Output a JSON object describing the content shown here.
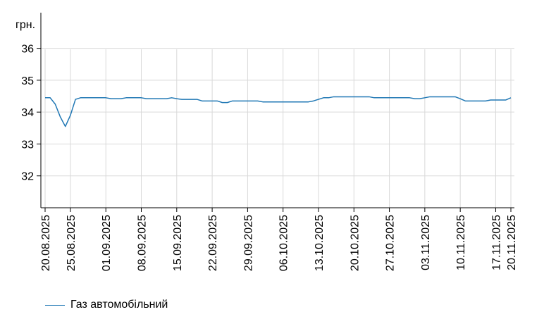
{
  "chart_data": {
    "type": "line",
    "unit_label": "грн.",
    "ylim": [
      31,
      36.5
    ],
    "y_ticks": [
      32,
      33,
      34,
      35,
      36
    ],
    "x_tick_labels": [
      "20.08.2025",
      "25.08.2025",
      "01.09.2025",
      "08.09.2025",
      "15.09.2025",
      "22.09.2025",
      "29.09.2025",
      "06.10.2025",
      "13.10.2025",
      "20.10.2025",
      "27.10.2025",
      "03.11.2025",
      "10.11.2025",
      "17.11.2025",
      "20.11.2025"
    ],
    "grid": true,
    "legend_position": "bottom-left",
    "colors": {
      "series": "#1f77b4",
      "grid": "#d9d9d9",
      "axis": "#000000"
    },
    "series": [
      {
        "name": "Газ автомобільний",
        "points": [
          [
            "20.08.2025",
            34.45
          ],
          [
            "21.08.2025",
            34.45
          ],
          [
            "22.08.2025",
            34.25
          ],
          [
            "23.08.2025",
            33.85
          ],
          [
            "24.08.2025",
            33.55
          ],
          [
            "25.08.2025",
            33.9
          ],
          [
            "26.08.2025",
            34.4
          ],
          [
            "27.08.2025",
            34.45
          ],
          [
            "28.08.2025",
            34.45
          ],
          [
            "29.08.2025",
            34.45
          ],
          [
            "30.08.2025",
            34.45
          ],
          [
            "31.08.2025",
            34.45
          ],
          [
            "01.09.2025",
            34.45
          ],
          [
            "02.09.2025",
            34.42
          ],
          [
            "03.09.2025",
            34.42
          ],
          [
            "04.09.2025",
            34.42
          ],
          [
            "05.09.2025",
            34.45
          ],
          [
            "06.09.2025",
            34.45
          ],
          [
            "07.09.2025",
            34.45
          ],
          [
            "08.09.2025",
            34.45
          ],
          [
            "09.09.2025",
            34.42
          ],
          [
            "10.09.2025",
            34.42
          ],
          [
            "11.09.2025",
            34.42
          ],
          [
            "12.09.2025",
            34.42
          ],
          [
            "13.09.2025",
            34.42
          ],
          [
            "14.09.2025",
            34.45
          ],
          [
            "15.09.2025",
            34.42
          ],
          [
            "16.09.2025",
            34.4
          ],
          [
            "17.09.2025",
            34.4
          ],
          [
            "18.09.2025",
            34.4
          ],
          [
            "19.09.2025",
            34.4
          ],
          [
            "20.09.2025",
            34.35
          ],
          [
            "21.09.2025",
            34.35
          ],
          [
            "22.09.2025",
            34.35
          ],
          [
            "23.09.2025",
            34.35
          ],
          [
            "24.09.2025",
            34.3
          ],
          [
            "25.09.2025",
            34.3
          ],
          [
            "26.09.2025",
            34.35
          ],
          [
            "27.09.2025",
            34.35
          ],
          [
            "28.09.2025",
            34.35
          ],
          [
            "29.09.2025",
            34.35
          ],
          [
            "30.09.2025",
            34.35
          ],
          [
            "01.10.2025",
            34.35
          ],
          [
            "02.10.2025",
            34.32
          ],
          [
            "03.10.2025",
            34.32
          ],
          [
            "04.10.2025",
            34.32
          ],
          [
            "05.10.2025",
            34.32
          ],
          [
            "06.10.2025",
            34.32
          ],
          [
            "07.10.2025",
            34.32
          ],
          [
            "08.10.2025",
            34.32
          ],
          [
            "09.10.2025",
            34.32
          ],
          [
            "10.10.2025",
            34.32
          ],
          [
            "11.10.2025",
            34.32
          ],
          [
            "12.10.2025",
            34.35
          ],
          [
            "13.10.2025",
            34.4
          ],
          [
            "14.10.2025",
            34.45
          ],
          [
            "15.10.2025",
            34.45
          ],
          [
            "16.10.2025",
            34.48
          ],
          [
            "17.10.2025",
            34.48
          ],
          [
            "18.10.2025",
            34.48
          ],
          [
            "19.10.2025",
            34.48
          ],
          [
            "20.10.2025",
            34.48
          ],
          [
            "21.10.2025",
            34.48
          ],
          [
            "22.10.2025",
            34.48
          ],
          [
            "23.10.2025",
            34.48
          ],
          [
            "24.10.2025",
            34.45
          ],
          [
            "25.10.2025",
            34.45
          ],
          [
            "26.10.2025",
            34.45
          ],
          [
            "27.10.2025",
            34.45
          ],
          [
            "28.10.2025",
            34.45
          ],
          [
            "29.10.2025",
            34.45
          ],
          [
            "30.10.2025",
            34.45
          ],
          [
            "31.10.2025",
            34.45
          ],
          [
            "01.11.2025",
            34.42
          ],
          [
            "02.11.2025",
            34.42
          ],
          [
            "03.11.2025",
            34.45
          ],
          [
            "04.11.2025",
            34.48
          ],
          [
            "05.11.2025",
            34.48
          ],
          [
            "06.11.2025",
            34.48
          ],
          [
            "07.11.2025",
            34.48
          ],
          [
            "08.11.2025",
            34.48
          ],
          [
            "09.11.2025",
            34.48
          ],
          [
            "10.11.2025",
            34.42
          ],
          [
            "11.11.2025",
            34.35
          ],
          [
            "12.11.2025",
            34.35
          ],
          [
            "13.11.2025",
            34.35
          ],
          [
            "14.11.2025",
            34.35
          ],
          [
            "15.11.2025",
            34.35
          ],
          [
            "16.11.2025",
            34.38
          ],
          [
            "17.11.2025",
            34.38
          ],
          [
            "18.11.2025",
            34.38
          ],
          [
            "19.11.2025",
            34.38
          ],
          [
            "20.11.2025",
            34.45
          ]
        ]
      }
    ]
  },
  "legend": {
    "label": "Газ автомобільний"
  }
}
